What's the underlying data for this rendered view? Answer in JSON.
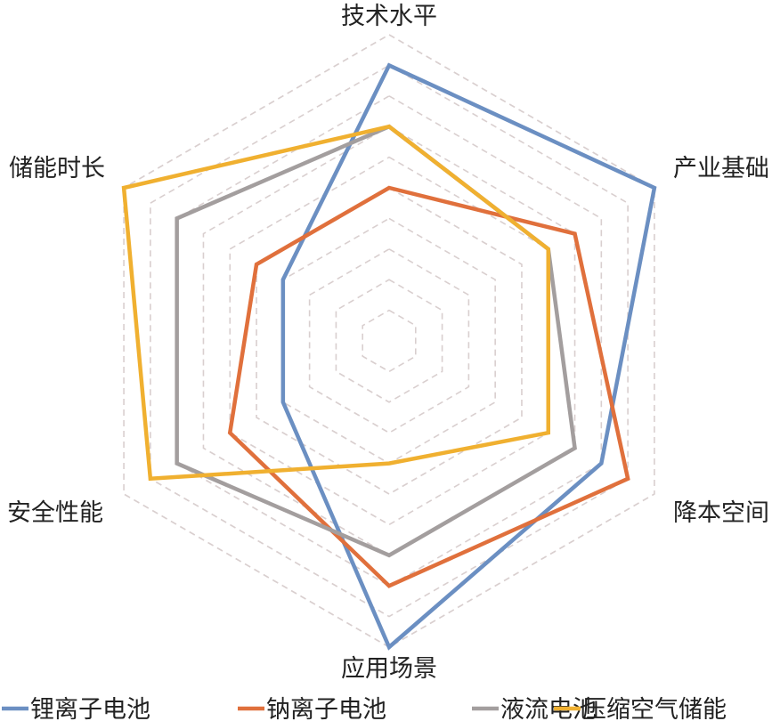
{
  "chart_data": {
    "type": "radar",
    "axes": [
      "技术水平",
      "产业基础",
      "降本空间",
      "应用场景",
      "安全性能",
      "储能时长"
    ],
    "range": [
      0,
      10
    ],
    "grid_rings": 10,
    "grid": true,
    "legend_placement": "bottom",
    "series": [
      {
        "name": "锂离子电池",
        "color": "#6b8fc2",
        "values": [
          9,
          10,
          8,
          10,
          4,
          4
        ]
      },
      {
        "name": "钠离子电池",
        "color": "#e0703c",
        "values": [
          5,
          7,
          9,
          8,
          6,
          5
        ]
      },
      {
        "name": "液流电池",
        "color": "#a39e9e",
        "values": [
          7,
          6,
          7,
          7,
          8,
          8
        ]
      },
      {
        "name": "压缩空气储能",
        "color": "#f0b030",
        "values": [
          7,
          6,
          6,
          4,
          9,
          10
        ]
      }
    ]
  }
}
